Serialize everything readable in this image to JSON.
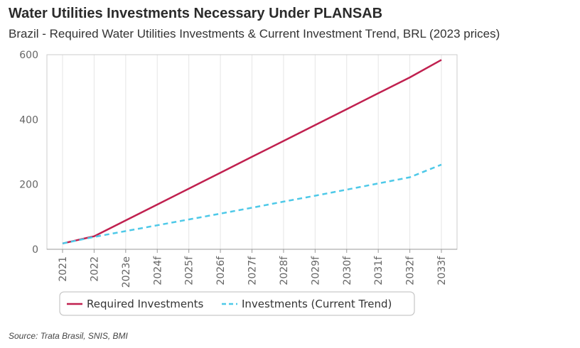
{
  "header": {
    "title": "Water Utilities Investments Necessary Under PLANSAB",
    "subtitle": "Brazil - Required Water Utilities Investments & Current Investment Trend, BRL (2023 prices)"
  },
  "footer": {
    "source": "Source: Trata Brasil, SNIS, BMI"
  },
  "chart_data": {
    "type": "line",
    "title": "Water Utilities Investments Necessary Under PLANSAB",
    "subtitle": "Brazil - Required Water Utilities Investments & Current Investment Trend, BRL (2023 prices)",
    "xlabel": "",
    "ylabel": "",
    "categories": [
      "2021",
      "2022",
      "2023e",
      "2024f",
      "2025f",
      "2026f",
      "2027f",
      "2028f",
      "2029f",
      "2030f",
      "2031f",
      "2032f",
      "2033f"
    ],
    "ylim": [
      0,
      600
    ],
    "yticks": [
      0,
      200,
      400,
      600
    ],
    "grid": "vertical",
    "legend_position": "bottom",
    "series": [
      {
        "name": "Required Investments",
        "color": "#c0204f",
        "style": "solid",
        "values": [
          18,
          40,
          89,
          138,
          187,
          236,
          285,
          334,
          383,
          432,
          481,
          530,
          584
        ]
      },
      {
        "name": "Investments (Current Trend)",
        "color": "#4ec9e8",
        "style": "dashed",
        "values": [
          18,
          38,
          56,
          74,
          92,
          110,
          128,
          147,
          165,
          184,
          203,
          222,
          261
        ]
      }
    ]
  }
}
